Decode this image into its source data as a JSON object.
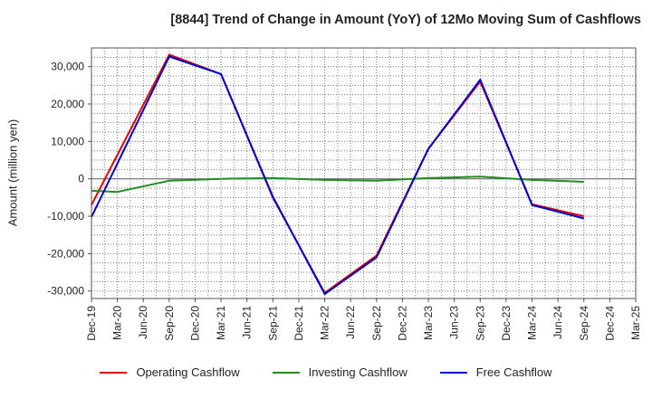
{
  "chart_data": {
    "type": "line",
    "title": "[8844]  Trend of Change in Amount (YoY) of 12Mo Moving Sum of Cashflows",
    "xlabel": "",
    "ylabel": "Amount (million yen)",
    "ylim": [
      -32000,
      35000
    ],
    "yticks": [
      30000,
      20000,
      10000,
      0,
      -10000,
      -20000,
      -30000
    ],
    "ytick_labels": [
      "30,000",
      "20,000",
      "10,000",
      "0",
      "-10,000",
      "-20,000",
      "-30,000"
    ],
    "categories": [
      "Dec-19",
      "Mar-20",
      "Jun-20",
      "Sep-20",
      "Dec-20",
      "Mar-21",
      "Jun-21",
      "Sep-21",
      "Dec-21",
      "Mar-22",
      "Jun-22",
      "Sep-22",
      "Dec-22",
      "Mar-23",
      "Jun-23",
      "Sep-23",
      "Dec-23",
      "Mar-24",
      "Jun-24",
      "Sep-24",
      "Dec-24",
      "Mar-25"
    ],
    "x_tick_labels": [
      "Dec-19",
      "Mar-20",
      "Jun-20",
      "Sep-20",
      "Dec-20",
      "Mar-21",
      "Jun-21",
      "Sep-21",
      "Dec-21",
      "Mar-22",
      "Jun-22",
      "Sep-22",
      "Dec-22",
      "Mar-23",
      "Jun-23",
      "Sep-23",
      "Dec-23",
      "Mar-24",
      "Jun-24",
      "Sep-24",
      "Dec-24",
      "Mar-25"
    ],
    "grid": true,
    "legend_position": "bottom",
    "series": [
      {
        "name": "Operating Cashflow",
        "color": "#e00000",
        "points": [
          [
            0,
            -7000
          ],
          [
            3,
            33200
          ],
          [
            5,
            28000
          ],
          [
            7,
            -5000
          ],
          [
            9,
            -30500
          ],
          [
            11,
            -20500
          ],
          [
            13,
            8000
          ],
          [
            15,
            26000
          ],
          [
            17,
            -6800
          ],
          [
            19,
            -10000
          ]
        ]
      },
      {
        "name": "Investing Cashflow",
        "color": "#228b22",
        "points": [
          [
            0,
            -3200
          ],
          [
            1,
            -3500
          ],
          [
            3,
            -500
          ],
          [
            5,
            0
          ],
          [
            7,
            200
          ],
          [
            9,
            -300
          ],
          [
            11,
            -500
          ],
          [
            13,
            200
          ],
          [
            15,
            600
          ],
          [
            17,
            -300
          ],
          [
            19,
            -800
          ]
        ]
      },
      {
        "name": "Free Cashflow",
        "color": "#0000cc",
        "points": [
          [
            0,
            -10200
          ],
          [
            3,
            32700
          ],
          [
            5,
            28000
          ],
          [
            7,
            -4800
          ],
          [
            9,
            -30800
          ],
          [
            11,
            -21000
          ],
          [
            13,
            8000
          ],
          [
            15,
            26500
          ],
          [
            17,
            -7000
          ],
          [
            19,
            -10600
          ]
        ]
      }
    ]
  }
}
